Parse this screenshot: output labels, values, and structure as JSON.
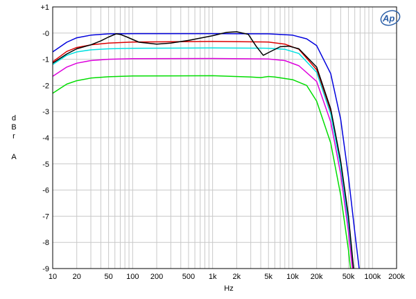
{
  "chart_data": {
    "type": "line",
    "title": "",
    "xlabel": "Hz",
    "ylabel": [
      "d",
      "B",
      "r",
      "",
      "A"
    ],
    "x_scale": "log",
    "xlim": [
      10,
      200000
    ],
    "ylim": [
      -9,
      1
    ],
    "grid": true,
    "x_ticks": [
      {
        "v": 10,
        "label": "10"
      },
      {
        "v": 20,
        "label": "20"
      },
      {
        "v": 50,
        "label": "50"
      },
      {
        "v": 100,
        "label": "100"
      },
      {
        "v": 200,
        "label": "200"
      },
      {
        "v": 500,
        "label": "500"
      },
      {
        "v": 1000,
        "label": "1k"
      },
      {
        "v": 2000,
        "label": "2k"
      },
      {
        "v": 5000,
        "label": "5k"
      },
      {
        "v": 10000,
        "label": "10k"
      },
      {
        "v": 20000,
        "label": "20k"
      },
      {
        "v": 50000,
        "label": "50k"
      },
      {
        "v": 100000,
        "label": "100k"
      },
      {
        "v": 200000,
        "label": "200k"
      }
    ],
    "y_ticks": [
      {
        "v": 1,
        "label": "+1"
      },
      {
        "v": 0,
        "label": "-0"
      },
      {
        "v": -1,
        "label": "-1"
      },
      {
        "v": -2,
        "label": "-2"
      },
      {
        "v": -3,
        "label": "-3"
      },
      {
        "v": -4,
        "label": "-4"
      },
      {
        "v": -5,
        "label": "-5"
      },
      {
        "v": -6,
        "label": "-6"
      },
      {
        "v": -7,
        "label": "-7"
      },
      {
        "v": -8,
        "label": "-8"
      },
      {
        "v": -9,
        "label": "-9"
      }
    ],
    "series": [
      {
        "color": "#0000dd",
        "points": [
          [
            10,
            -0.72
          ],
          [
            15,
            -0.35
          ],
          [
            20,
            -0.18
          ],
          [
            30,
            -0.08
          ],
          [
            50,
            -0.03
          ],
          [
            100,
            -0.02
          ],
          [
            1000,
            -0.02
          ],
          [
            5000,
            -0.03
          ],
          [
            10000,
            -0.08
          ],
          [
            15000,
            -0.22
          ],
          [
            20000,
            -0.48
          ],
          [
            30000,
            -1.55
          ],
          [
            40000,
            -3.3
          ],
          [
            50000,
            -5.5
          ],
          [
            60000,
            -7.6
          ],
          [
            68000,
            -9.0
          ]
        ]
      },
      {
        "color": "#dd0000",
        "points": [
          [
            10,
            -1.1
          ],
          [
            15,
            -0.7
          ],
          [
            20,
            -0.55
          ],
          [
            30,
            -0.45
          ],
          [
            50,
            -0.38
          ],
          [
            100,
            -0.34
          ],
          [
            1000,
            -0.32
          ],
          [
            5000,
            -0.34
          ],
          [
            8000,
            -0.42
          ],
          [
            12000,
            -0.62
          ],
          [
            20000,
            -1.4
          ],
          [
            30000,
            -3.0
          ],
          [
            40000,
            -5.0
          ],
          [
            50000,
            -7.2
          ],
          [
            57000,
            -9.0
          ]
        ]
      },
      {
        "color": "#00e0e0",
        "points": [
          [
            10,
            -1.2
          ],
          [
            15,
            -0.85
          ],
          [
            20,
            -0.72
          ],
          [
            30,
            -0.64
          ],
          [
            50,
            -0.6
          ],
          [
            100,
            -0.58
          ],
          [
            1000,
            -0.57
          ],
          [
            5000,
            -0.58
          ],
          [
            8000,
            -0.62
          ],
          [
            12000,
            -0.78
          ],
          [
            20000,
            -1.5
          ],
          [
            30000,
            -3.1
          ],
          [
            40000,
            -5.1
          ],
          [
            50000,
            -7.3
          ],
          [
            58000,
            -9.0
          ]
        ]
      },
      {
        "color": "#dd00dd",
        "points": [
          [
            10,
            -1.65
          ],
          [
            15,
            -1.3
          ],
          [
            20,
            -1.15
          ],
          [
            30,
            -1.05
          ],
          [
            50,
            -1.0
          ],
          [
            100,
            -0.98
          ],
          [
            1000,
            -0.97
          ],
          [
            5000,
            -0.99
          ],
          [
            8000,
            -1.05
          ],
          [
            12000,
            -1.25
          ],
          [
            20000,
            -1.85
          ],
          [
            30000,
            -3.4
          ],
          [
            40000,
            -5.4
          ],
          [
            50000,
            -7.6
          ],
          [
            56000,
            -9.0
          ]
        ]
      },
      {
        "color": "#00dd00",
        "points": [
          [
            10,
            -2.3
          ],
          [
            15,
            -1.95
          ],
          [
            20,
            -1.82
          ],
          [
            30,
            -1.72
          ],
          [
            50,
            -1.67
          ],
          [
            100,
            -1.64
          ],
          [
            1000,
            -1.63
          ],
          [
            3000,
            -1.68
          ],
          [
            4000,
            -1.7
          ],
          [
            5000,
            -1.66
          ],
          [
            6000,
            -1.68
          ],
          [
            10000,
            -1.78
          ],
          [
            15000,
            -2.0
          ],
          [
            20000,
            -2.6
          ],
          [
            30000,
            -4.2
          ],
          [
            40000,
            -6.2
          ],
          [
            50000,
            -8.3
          ],
          [
            53000,
            -9.0
          ]
        ]
      },
      {
        "color": "#000000",
        "points": [
          [
            10,
            -1.15
          ],
          [
            15,
            -0.8
          ],
          [
            20,
            -0.6
          ],
          [
            30,
            -0.45
          ],
          [
            40,
            -0.3
          ],
          [
            50,
            -0.15
          ],
          [
            62,
            -0.03
          ],
          [
            70,
            -0.05
          ],
          [
            85,
            -0.15
          ],
          [
            120,
            -0.35
          ],
          [
            200,
            -0.42
          ],
          [
            300,
            -0.38
          ],
          [
            500,
            -0.28
          ],
          [
            1000,
            -0.1
          ],
          [
            1500,
            0.03
          ],
          [
            2000,
            0.05
          ],
          [
            2800,
            -0.05
          ],
          [
            3500,
            -0.5
          ],
          [
            4300,
            -0.85
          ],
          [
            5200,
            -0.72
          ],
          [
            7000,
            -0.52
          ],
          [
            9000,
            -0.5
          ],
          [
            12000,
            -0.6
          ],
          [
            20000,
            -1.3
          ],
          [
            30000,
            -2.9
          ],
          [
            40000,
            -4.9
          ],
          [
            50000,
            -7.0
          ],
          [
            58000,
            -9.0
          ]
        ]
      }
    ]
  }
}
